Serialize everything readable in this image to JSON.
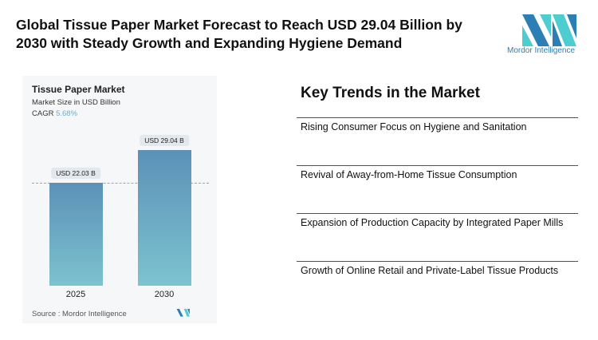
{
  "title": "Global Tissue Paper Market Forecast to Reach USD 29.04 Billion by 2030 with Steady Growth and Expanding Hygiene Demand",
  "logo": {
    "text": "Mordor Intelligence",
    "colors": [
      "#2b7fb5",
      "#4ecdd0"
    ]
  },
  "chart_data": {
    "type": "bar",
    "title": "Tissue Paper Market",
    "subtitle": "Market Size in USD Billion",
    "cagr_label": "CAGR",
    "cagr_value": "5.68%",
    "categories": [
      "2025",
      "2030"
    ],
    "values": [
      22.03,
      29.04
    ],
    "data_labels": [
      "USD 22.03 B",
      "USD 29.04 B"
    ],
    "ylim": [
      0,
      29.04
    ],
    "source": "Source :  Mordor Intelligence",
    "colors": {
      "bar_top": "#5b91b8",
      "bar_bottom": "#7dc3cf"
    }
  },
  "trends": {
    "title": "Key Trends in the Market",
    "items": [
      "Rising Consumer Focus on Hygiene and Sanitation",
      "Revival of Away-from-Home Tissue Consumption",
      "Expansion of Production Capacity by Integrated Paper Mills",
      "Growth of Online Retail and Private-Label Tissue Products"
    ]
  }
}
